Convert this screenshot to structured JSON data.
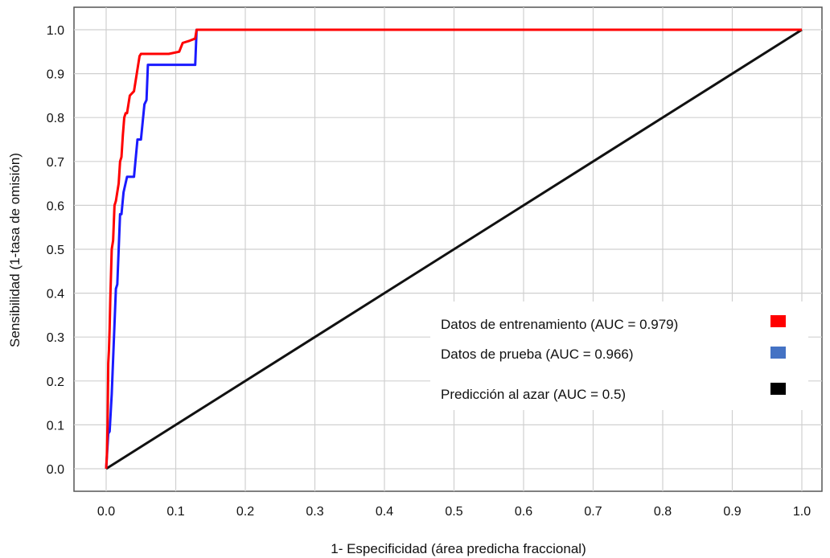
{
  "chart_data": {
    "type": "line",
    "title": "",
    "xlabel": "1- Especificidad (área predicha fraccional)",
    "ylabel": "Sensibilidad (1-tasa de omisión)",
    "xlim": [
      0,
      1.0
    ],
    "ylim": [
      0,
      1.0
    ],
    "grid": true,
    "legend_position": "bottom-right",
    "x_ticks": [
      "0.0",
      "0.1",
      "0.2",
      "0.3",
      "0.4",
      "0.5",
      "0.6",
      "0.7",
      "0.8",
      "0.9",
      "1.0"
    ],
    "y_ticks": [
      "0.0",
      "0.1",
      "0.2",
      "0.3",
      "0.4",
      "0.5",
      "0.6",
      "0.7",
      "0.8",
      "0.9",
      "1.0"
    ],
    "series": [
      {
        "name": "Datos de entrenamiento (AUC = 0.979)",
        "color": "#ff0000",
        "x": [
          0.0,
          0.001,
          0.002,
          0.003,
          0.004,
          0.005,
          0.006,
          0.008,
          0.01,
          0.012,
          0.014,
          0.016,
          0.018,
          0.02,
          0.022,
          0.024,
          0.026,
          0.028,
          0.03,
          0.032,
          0.034,
          0.04,
          0.042,
          0.044,
          0.046,
          0.048,
          0.05,
          0.07,
          0.09,
          0.105,
          0.11,
          0.12,
          0.128,
          0.13,
          1.0
        ],
        "y": [
          0.0,
          0.03,
          0.1,
          0.24,
          0.27,
          0.32,
          0.39,
          0.5,
          0.52,
          0.6,
          0.61,
          0.63,
          0.65,
          0.7,
          0.71,
          0.76,
          0.8,
          0.81,
          0.81,
          0.83,
          0.85,
          0.86,
          0.88,
          0.9,
          0.92,
          0.94,
          0.945,
          0.945,
          0.945,
          0.95,
          0.97,
          0.975,
          0.98,
          1.0,
          1.0
        ]
      },
      {
        "name": "Datos de prueba (AUC = 0.966)",
        "color": "#1a1aff",
        "x": [
          0.0,
          0.003,
          0.005,
          0.008,
          0.01,
          0.012,
          0.014,
          0.016,
          0.018,
          0.02,
          0.022,
          0.025,
          0.03,
          0.035,
          0.04,
          0.045,
          0.048,
          0.05,
          0.055,
          0.058,
          0.06,
          0.08,
          0.1,
          0.12,
          0.128,
          0.13,
          1.0
        ],
        "y": [
          0.0,
          0.08,
          0.085,
          0.17,
          0.25,
          0.33,
          0.41,
          0.42,
          0.5,
          0.58,
          0.58,
          0.63,
          0.665,
          0.665,
          0.665,
          0.75,
          0.75,
          0.75,
          0.83,
          0.84,
          0.92,
          0.92,
          0.92,
          0.92,
          0.92,
          1.0,
          1.0
        ]
      },
      {
        "name": "Predicción al azar (AUC = 0.5)",
        "color": "#111111",
        "x": [
          0.0,
          1.0
        ],
        "y": [
          0.0,
          1.0
        ]
      }
    ]
  }
}
